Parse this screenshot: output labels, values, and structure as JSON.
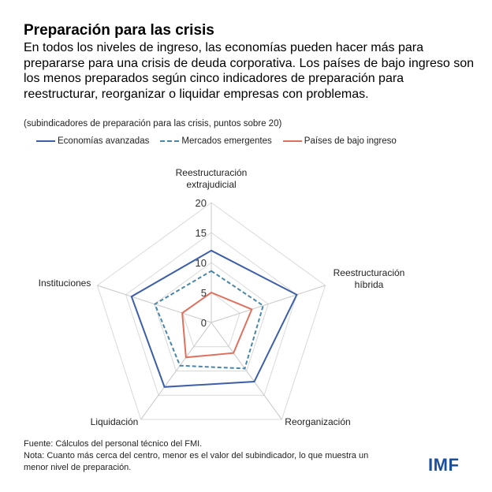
{
  "title": "Preparación para las crisis",
  "body": "En todos los niveles de ingreso, las economías pueden hacer más para prepararse para una crisis de deuda corporativa. Los países de bajo ingreso son los menos preparados según cinco indicadores de preparación para reestructurar, reorganizar o liquidar empresas con problemas.",
  "subtitle": "(subindicadores de preparación para las crisis, puntos sobre 20)",
  "footnotes": {
    "source": "Fuente: Cálculos del personal técnico del FMI.",
    "note": "Nota: Cuanto más cerca del centro, menor es el valor del subindicador, lo que muestra un menor nivel de preparación."
  },
  "logo": "IMF",
  "chart_data": {
    "type": "radar",
    "categories": [
      "Reestructuración extrajudicial",
      "Reestructuración híbrida",
      "Reorganización",
      "Liquidación",
      "Instituciones"
    ],
    "category_lines": [
      [
        "Reestructuración",
        "extrajudicial"
      ],
      [
        "Reestructuración",
        "híbrida"
      ],
      [
        "Reorganización"
      ],
      [
        "Liquidación"
      ],
      [
        "Instituciones"
      ]
    ],
    "rlim": [
      0,
      20
    ],
    "ticks": [
      0,
      5,
      10,
      15,
      20
    ],
    "grid": true,
    "legend_position": "top",
    "series": [
      {
        "name": "Economías avanzadas",
        "values": [
          12,
          15,
          12.2,
          13.3,
          14
        ],
        "color": "#3d5fa8",
        "style": "solid"
      },
      {
        "name": "Mercados emergentes",
        "values": [
          8.6,
          9.1,
          9.5,
          8.9,
          9.9
        ],
        "color": "#4a86a8",
        "style": "dashed"
      },
      {
        "name": "Países de bajo ingreso",
        "values": [
          5,
          7.1,
          6.3,
          7.2,
          5.1
        ],
        "color": "#e0705e",
        "style": "solid"
      }
    ]
  }
}
